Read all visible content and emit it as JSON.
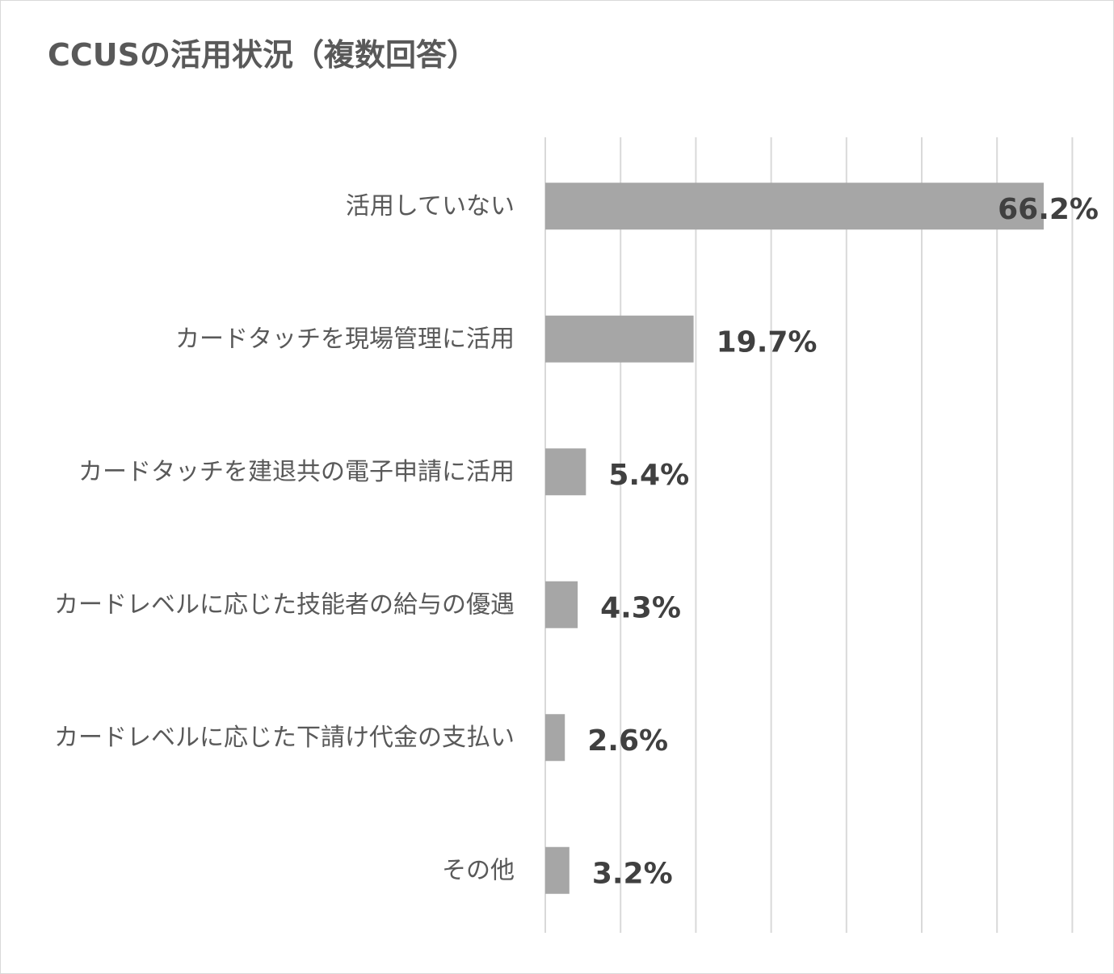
{
  "chart_data": {
    "type": "bar",
    "orientation": "horizontal",
    "title": "CCUSの活用状況（複数回答）",
    "categories": [
      "活用していない",
      "カードタッチを現場管理に活用",
      "カードタッチを建退共の電子申請に活用",
      "カードレベルに応じた技能者の給与の優遇",
      "カードレベルに応じた下請け代金の支払い",
      "その他"
    ],
    "values": [
      66.2,
      19.7,
      5.4,
      4.3,
      2.6,
      3.2
    ],
    "value_labels": [
      "66.2%",
      "19.7%",
      "5.4%",
      "4.3%",
      "2.6%",
      "3.2%"
    ],
    "xlim": [
      0,
      70
    ],
    "x_gridline_step": 10,
    "grid": true,
    "x_tick_labels_visible": false,
    "legend": "none",
    "bar_color": "#a6a6a6",
    "gridline_color": "#d9d9d9",
    "label_color": "#595959",
    "value_label_color": "#404040"
  }
}
